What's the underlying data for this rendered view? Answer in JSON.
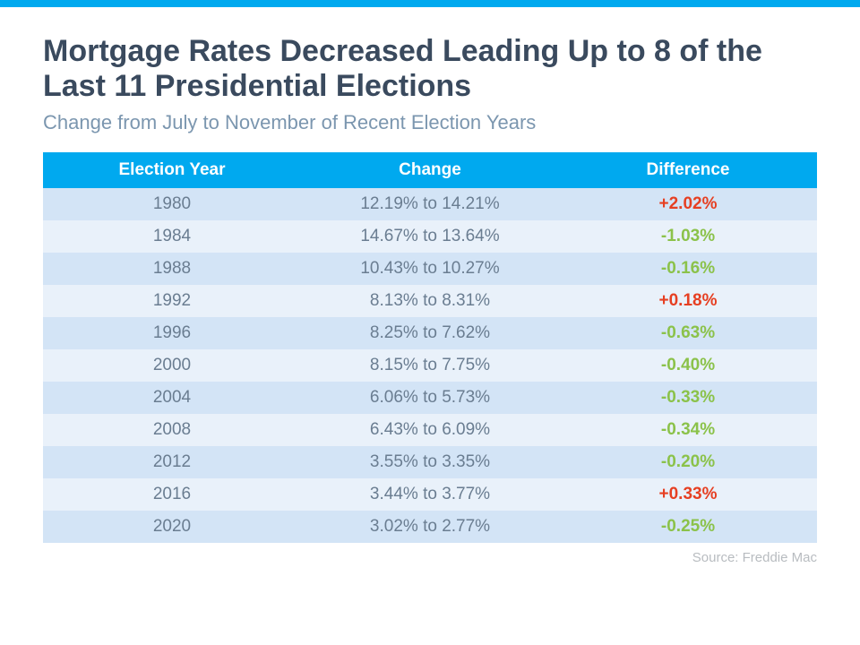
{
  "colors": {
    "accent_bar": "#00a9ef",
    "title": "#3a4a5e",
    "subtitle": "#7b96af",
    "header_bg": "#00a9ef",
    "header_text": "#ffffff",
    "row_odd": "#d3e4f6",
    "row_even": "#e9f1fa",
    "cell_text": "#6a7d91",
    "diff_positive": "#e63f22",
    "diff_negative": "#8bc24a",
    "source": "#b8bcc0"
  },
  "typography": {
    "title_fontsize": 34,
    "subtitle_fontsize": 22,
    "header_fontsize": 19,
    "cell_fontsize": 19,
    "source_fontsize": 15
  },
  "title": "Mortgage Rates Decreased Leading Up to 8 of the Last 11 Presidential Elections",
  "subtitle": "Change from July to November of Recent Election Years",
  "table": {
    "columns": [
      "Election Year",
      "Change",
      "Difference"
    ],
    "rows": [
      {
        "year": "1980",
        "change": "12.19% to 14.21%",
        "difference": "+2.02%",
        "direction": "positive"
      },
      {
        "year": "1984",
        "change": "14.67% to 13.64%",
        "difference": "-1.03%",
        "direction": "negative"
      },
      {
        "year": "1988",
        "change": "10.43% to 10.27%",
        "difference": "-0.16%",
        "direction": "negative"
      },
      {
        "year": "1992",
        "change": "8.13% to 8.31%",
        "difference": "+0.18%",
        "direction": "positive"
      },
      {
        "year": "1996",
        "change": "8.25% to 7.62%",
        "difference": "-0.63%",
        "direction": "negative"
      },
      {
        "year": "2000",
        "change": "8.15% to 7.75%",
        "difference": "-0.40%",
        "direction": "negative"
      },
      {
        "year": "2004",
        "change": "6.06% to 5.73%",
        "difference": "-0.33%",
        "direction": "negative"
      },
      {
        "year": "2008",
        "change": "6.43% to 6.09%",
        "difference": "-0.34%",
        "direction": "negative"
      },
      {
        "year": "2012",
        "change": "3.55% to 3.35%",
        "difference": "-0.20%",
        "direction": "negative"
      },
      {
        "year": "2016",
        "change": "3.44% to 3.77%",
        "difference": "+0.33%",
        "direction": "positive"
      },
      {
        "year": "2020",
        "change": "3.02% to 2.77%",
        "difference": "-0.25%",
        "direction": "negative"
      }
    ]
  },
  "source": "Source: Freddie Mac"
}
